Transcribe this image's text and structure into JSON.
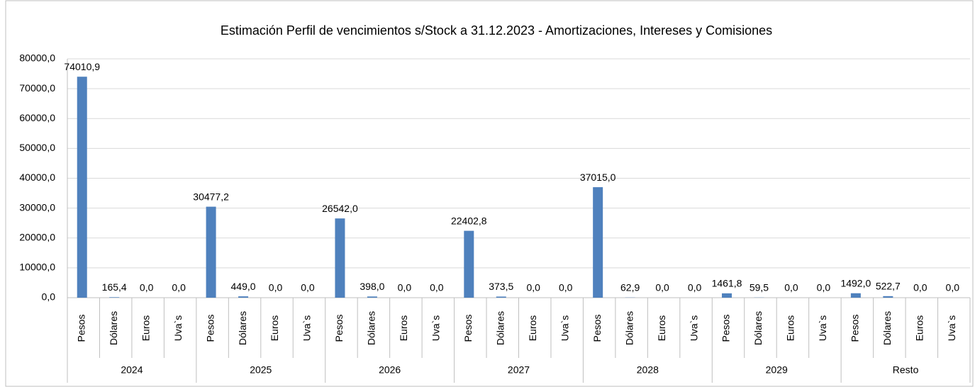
{
  "chart_data": {
    "type": "bar",
    "title": "Estimación Perfil de vencimientos s/Stock a 31.12.2023 - Amortizaciones, Intereses y Comisiones",
    "groups": [
      "2024",
      "2025",
      "2026",
      "2027",
      "2028",
      "2029",
      "Resto"
    ],
    "categories": [
      "Pesos",
      "Dólares",
      "Euros",
      "Uva`s"
    ],
    "values": [
      [
        74010.9,
        165.4,
        0,
        0
      ],
      [
        30477.2,
        449.0,
        0,
        0
      ],
      [
        26542.0,
        398.0,
        0,
        0
      ],
      [
        22402.8,
        373.5,
        0,
        0
      ],
      [
        37015.0,
        62.9,
        0,
        0
      ],
      [
        1461.8,
        59.5,
        0,
        0
      ],
      [
        1492.0,
        522.7,
        0,
        0
      ]
    ],
    "value_labels": [
      [
        "74010,9",
        "165,4",
        "0,0",
        "0,0"
      ],
      [
        "30477,2",
        "449,0",
        "0,0",
        "0,0"
      ],
      [
        "26542,0",
        "398,0",
        "0,0",
        "0,0"
      ],
      [
        "22402,8",
        "373,5",
        "0,0",
        "0,0"
      ],
      [
        "37015,0",
        "62,9",
        "0,0",
        "0,0"
      ],
      [
        "1461,8",
        "59,5",
        "0,0",
        "0,0"
      ],
      [
        "1492,0",
        "522,7",
        "0,0",
        "0,0"
      ]
    ],
    "color": "#4f81bd",
    "ylim": [
      0,
      80000
    ],
    "yticks": [
      {
        "value": 0,
        "label": "0,0"
      },
      {
        "value": 10000,
        "label": "10000,0"
      },
      {
        "value": 20000,
        "label": "20000,0"
      },
      {
        "value": 30000,
        "label": "30000,0"
      },
      {
        "value": 40000,
        "label": "40000,0"
      },
      {
        "value": 50000,
        "label": "50000,0"
      },
      {
        "value": 60000,
        "label": "60000,0"
      },
      {
        "value": 70000,
        "label": "70000,0"
      },
      {
        "value": 80000,
        "label": "80000,0"
      }
    ],
    "grid": true
  }
}
